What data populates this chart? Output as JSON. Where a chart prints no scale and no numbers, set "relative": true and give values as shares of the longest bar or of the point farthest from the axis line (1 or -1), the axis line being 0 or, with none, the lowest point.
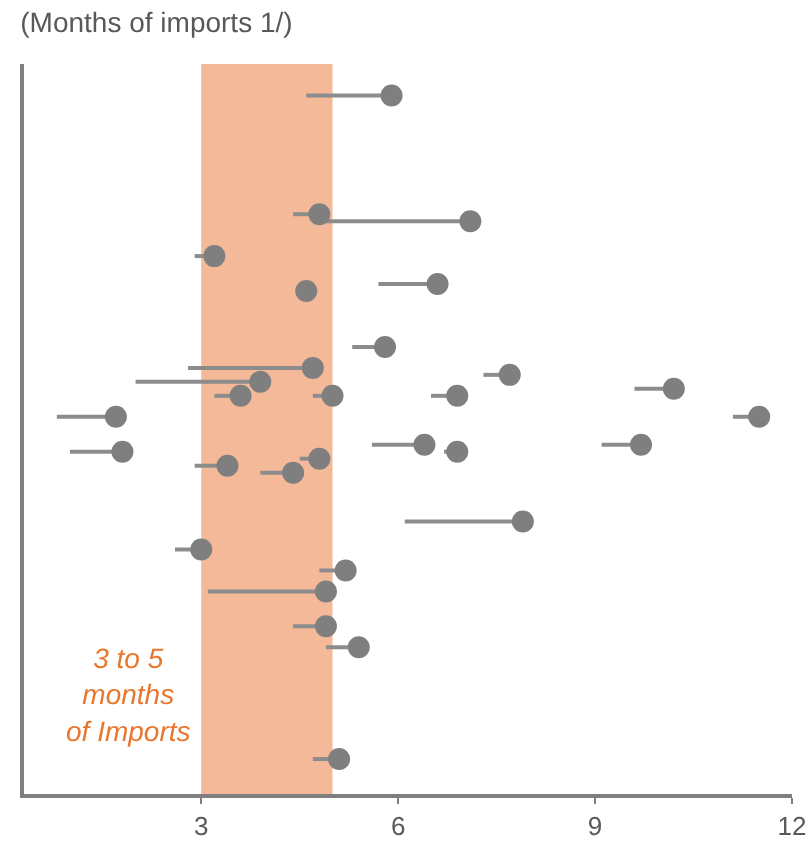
{
  "chart_data": {
    "type": "scatter",
    "title": "(Months of imports 1/)",
    "relative": true,
    "color": "#7f7f7f",
    "marker": "circle",
    "x": [
      5.9,
      4.8,
      7.1,
      3.2,
      6.6,
      4.6,
      5.8,
      4.7,
      3.9,
      7.7,
      3.6,
      5.0,
      6.9,
      10.2,
      1.7,
      11.5,
      1.8,
      6.4,
      6.9,
      9.7,
      4.8,
      3.4,
      4.4,
      7.9,
      3.0,
      5.2,
      4.9,
      4.9,
      5.4,
      5.1
    ],
    "values": [
      1.0,
      0.83,
      0.82,
      0.77,
      0.73,
      0.72,
      0.64,
      0.61,
      0.59,
      0.6,
      0.57,
      0.57,
      0.57,
      0.58,
      0.54,
      0.54,
      0.49,
      0.5,
      0.49,
      0.5,
      0.48,
      0.47,
      0.46,
      0.39,
      0.35,
      0.32,
      0.29,
      0.24,
      0.21,
      0.05
    ],
    "xerrors": [
      [
        4.6,
        5.9
      ],
      [
        4.4,
        4.8
      ],
      [
        4.8,
        7.1
      ],
      [
        2.9,
        3.2
      ],
      [
        5.7,
        6.6
      ],
      [
        4.5,
        4.6
      ],
      [
        5.3,
        5.8
      ],
      [
        2.8,
        4.7
      ],
      [
        2.0,
        3.9
      ],
      [
        7.3,
        7.7
      ],
      [
        3.2,
        3.6
      ],
      [
        4.7,
        5.0
      ],
      [
        6.5,
        6.9
      ],
      [
        9.6,
        10.2
      ],
      [
        0.8,
        1.7
      ],
      [
        11.1,
        11.5
      ],
      [
        1.0,
        1.8
      ],
      [
        5.6,
        6.4
      ],
      [
        6.7,
        6.9
      ],
      [
        9.1,
        9.7
      ],
      [
        4.5,
        4.8
      ],
      [
        2.9,
        3.4
      ],
      [
        3.9,
        4.4
      ],
      [
        6.1,
        7.9
      ],
      [
        2.6,
        3.0
      ],
      [
        4.8,
        5.2
      ],
      [
        3.1,
        4.9
      ],
      [
        4.4,
        4.9
      ],
      [
        4.9,
        5.4
      ],
      [
        4.7,
        5.1
      ]
    ],
    "xlim": [
      0.3,
      12
    ],
    "xticks": [
      3,
      6,
      9,
      12
    ],
    "bands": [
      {
        "axis": "x",
        "from": 3,
        "to": 5,
        "label": "3 to 5\nmonths\nof Imports",
        "color": "#f4b998"
      }
    ]
  }
}
